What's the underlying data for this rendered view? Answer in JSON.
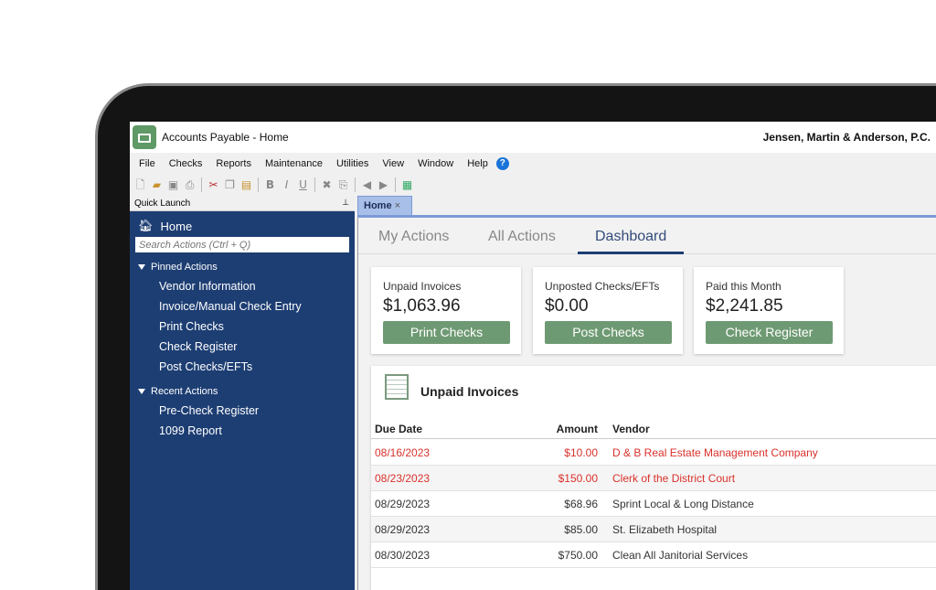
{
  "window": {
    "title": "Accounts Payable - Home",
    "company": "Jensen, Martin & Anderson, P.C."
  },
  "menu": [
    "File",
    "Checks",
    "Reports",
    "Maintenance",
    "Utilities",
    "View",
    "Window",
    "Help"
  ],
  "help_icon": "?",
  "quick_launch": {
    "title": "Quick Launch",
    "pin": "⊥",
    "home": "Home",
    "search_placeholder": "Search Actions (Ctrl + Q)",
    "pinned_label": "Pinned Actions",
    "pinned": [
      "Vendor Information",
      "Invoice/Manual Check Entry",
      "Print Checks",
      "Check Register",
      "Post Checks/EFTs"
    ],
    "recent_label": "Recent Actions",
    "recent": [
      "Pre-Check Register",
      "1099 Report"
    ]
  },
  "doc_tab": {
    "label": "Home",
    "close": "×"
  },
  "subtabs": [
    "My Actions",
    "All Actions",
    "Dashboard"
  ],
  "active_subtab": "Dashboard",
  "cards": [
    {
      "label": "Unpaid Invoices",
      "value": "$1,063.96",
      "button": "Print Checks"
    },
    {
      "label": "Unposted Checks/EFTs",
      "value": "$0.00",
      "button": "Post Checks"
    },
    {
      "label": "Paid this Month",
      "value": "$2,241.85",
      "button": "Check Register"
    }
  ],
  "invoices": {
    "title": "Unpaid Invoices",
    "columns": [
      "Due Date",
      "Amount",
      "Vendor"
    ],
    "rows": [
      {
        "date": "08/16/2023",
        "amount": "$10.00",
        "vendor": "D & B Real Estate Management Company",
        "overdue": true
      },
      {
        "date": "08/23/2023",
        "amount": "$150.00",
        "vendor": "Clerk of the District Court",
        "overdue": true
      },
      {
        "date": "08/29/2023",
        "amount": "$68.96",
        "vendor": "Sprint Local & Long Distance",
        "overdue": false
      },
      {
        "date": "08/29/2023",
        "amount": "$85.00",
        "vendor": "St. Elizabeth Hospital",
        "overdue": false
      },
      {
        "date": "08/30/2023",
        "amount": "$750.00",
        "vendor": "Clean All Janitorial Services",
        "overdue": false
      }
    ]
  },
  "colors": {
    "sidebar": "#1d3e73",
    "button": "#6e9a73",
    "overdue": "#d9312b"
  }
}
